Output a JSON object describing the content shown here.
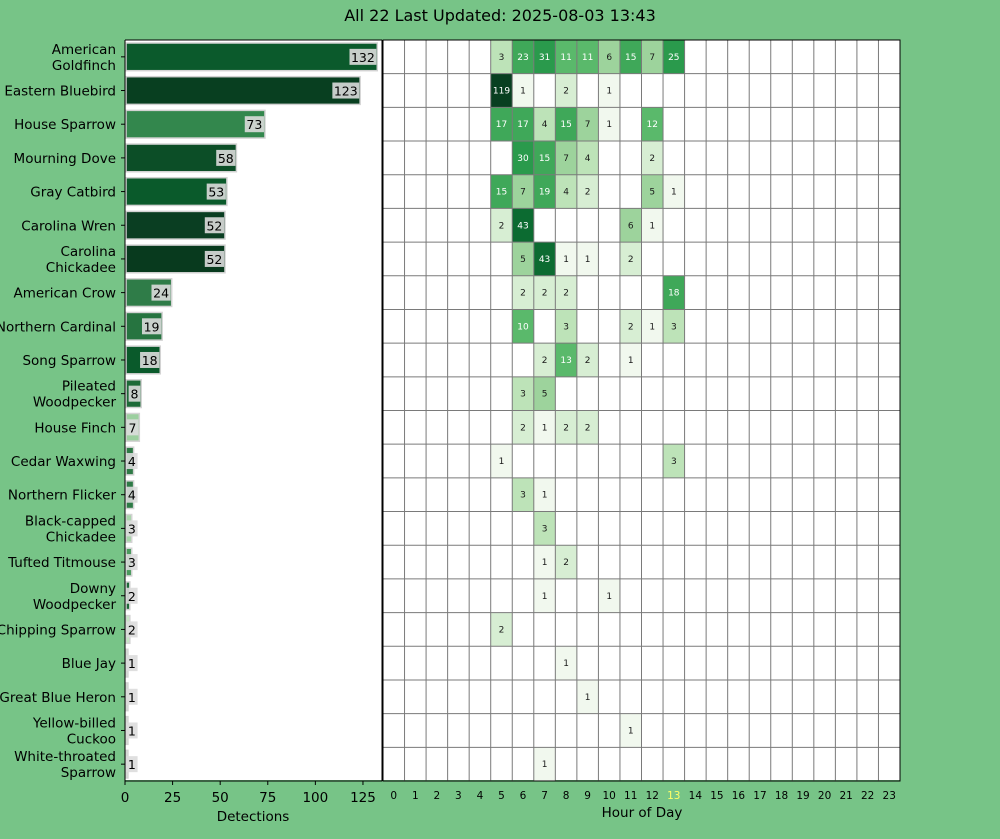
{
  "chart_data": {
    "type": "bar+heatmap",
    "title": "All 22 Last Updated: 2025-08-03 13:43",
    "xlabel_left": "Detections",
    "xlabel_right": "Hour of Day",
    "left_xlim": [
      0,
      135
    ],
    "left_xticks": [
      0,
      25,
      50,
      75,
      100,
      125
    ],
    "hours": [
      "0",
      "1",
      "2",
      "3",
      "4",
      "5",
      "6",
      "7",
      "8",
      "9",
      "10",
      "11",
      "12",
      "13",
      "14",
      "15",
      "16",
      "17",
      "18",
      "19",
      "20",
      "21",
      "22",
      "23"
    ],
    "current_hour": 13,
    "current_hour_color": "#ffff66",
    "species": [
      {
        "label": [
          "American",
          "Goldfinch"
        ],
        "total": 132,
        "bar_color": "#0b5a2c",
        "hourly": {
          "5": 3,
          "6": 23,
          "7": 31,
          "8": 11,
          "9": 11,
          "10": 6,
          "11": 15,
          "12": 7,
          "13": 25
        }
      },
      {
        "label": [
          "Eastern Bluebird"
        ],
        "total": 123,
        "bar_color": "#083f20",
        "hourly": {
          "5": 119,
          "6": 1,
          "8": 2,
          "10": 1
        }
      },
      {
        "label": [
          "House Sparrow"
        ],
        "total": 73,
        "bar_color": "#33874d",
        "hourly": {
          "5": 17,
          "6": 17,
          "7": 4,
          "8": 15,
          "9": 7,
          "10": 1,
          "12": 12
        }
      },
      {
        "label": [
          "Mourning Dove"
        ],
        "total": 58,
        "bar_color": "#0c4e27",
        "hourly": {
          "6": 30,
          "7": 15,
          "8": 7,
          "9": 4,
          "12": 2
        }
      },
      {
        "label": [
          "Gray Catbird"
        ],
        "total": 53,
        "bar_color": "#0a5a2b",
        "hourly": {
          "5": 15,
          "6": 7,
          "7": 19,
          "8": 4,
          "9": 2,
          "12": 5,
          "13": 1
        }
      },
      {
        "label": [
          "Carolina Wren"
        ],
        "total": 52,
        "bar_color": "#0a3e22",
        "hourly": {
          "5": 2,
          "6": 43,
          "11": 6,
          "12": 1
        }
      },
      {
        "label": [
          "Carolina",
          "Chickadee"
        ],
        "total": 52,
        "bar_color": "#083a1e",
        "hourly": {
          "6": 5,
          "7": 43,
          "8": 1,
          "9": 1,
          "11": 2
        }
      },
      {
        "label": [
          "American Crow"
        ],
        "total": 24,
        "bar_color": "#2f7c48",
        "hourly": {
          "6": 2,
          "7": 2,
          "8": 2,
          "13": 18
        }
      },
      {
        "label": [
          "Northern Cardinal"
        ],
        "total": 19,
        "bar_color": "#267440",
        "hourly": {
          "6": 10,
          "8": 3,
          "11": 2,
          "12": 1,
          "13": 3
        }
      },
      {
        "label": [
          "Song Sparrow"
        ],
        "total": 18,
        "bar_color": "#0a5a2b",
        "hourly": {
          "7": 2,
          "8": 13,
          "9": 2,
          "11": 1
        }
      },
      {
        "label": [
          "Pileated",
          "Woodpecker"
        ],
        "total": 8,
        "bar_color": "#1d6a38",
        "hourly": {
          "6": 3,
          "7": 5
        }
      },
      {
        "label": [
          "House Finch"
        ],
        "total": 7,
        "bar_color": "#9ccf9f",
        "hourly": {
          "6": 2,
          "7": 1,
          "8": 2,
          "9": 2
        }
      },
      {
        "label": [
          "Cedar Waxwing"
        ],
        "total": 4,
        "bar_color": "#2e7a46",
        "hourly": {
          "5": 1,
          "13": 3
        }
      },
      {
        "label": [
          "Northern Flicker"
        ],
        "total": 4,
        "bar_color": "#2e7a46",
        "hourly": {
          "6": 3,
          "7": 1
        }
      },
      {
        "label": [
          "Black-capped",
          "Chickadee"
        ],
        "total": 3,
        "bar_color": "#a8d5aa",
        "hourly": {
          "7": 3
        }
      },
      {
        "label": [
          "Tufted Titmouse"
        ],
        "total": 3,
        "bar_color": "#4a9a5d",
        "hourly": {
          "7": 1,
          "8": 2
        }
      },
      {
        "label": [
          "Downy",
          "Woodpecker"
        ],
        "total": 2,
        "bar_color": "#1d6a38",
        "hourly": {
          "7": 1,
          "10": 1
        }
      },
      {
        "label": [
          "Chipping Sparrow"
        ],
        "total": 2,
        "bar_color": "#c7e5c5",
        "hourly": {
          "5": 2
        }
      },
      {
        "label": [
          "Blue Jay"
        ],
        "total": 1,
        "bar_color": "#d9eed7",
        "hourly": {
          "8": 1
        }
      },
      {
        "label": [
          "Great Blue Heron"
        ],
        "total": 1,
        "bar_color": "#d9eed7",
        "hourly": {
          "9": 1
        }
      },
      {
        "label": [
          "Yellow-billed",
          "Cuckoo"
        ],
        "total": 1,
        "bar_color": "#d9eed7",
        "hourly": {
          "11": 1
        }
      },
      {
        "label": [
          "White-throated",
          "Sparrow"
        ],
        "total": 1,
        "bar_color": "#d9eed7",
        "hourly": {
          "7": 1
        }
      }
    ]
  }
}
